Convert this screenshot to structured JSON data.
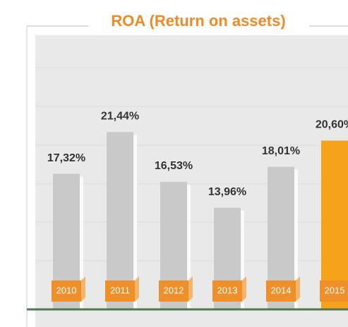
{
  "chart_data": {
    "type": "bar",
    "title": "ROA (Return on assets)",
    "categories": [
      "2010",
      "2011",
      "2012",
      "2013",
      "2014",
      "2015"
    ],
    "values": [
      17.32,
      21.44,
      16.53,
      13.96,
      18.01,
      20.6
    ],
    "value_labels": [
      "17,32%",
      "21,44%",
      "16,53%",
      "13,96%",
      "18,01%",
      "20,60%"
    ],
    "colors": [
      "#c9c9c9",
      "#c9c9c9",
      "#c9c9c9",
      "#c9c9c9",
      "#c9c9c9",
      "#f7a21b"
    ],
    "ylim": [
      4,
      31
    ]
  }
}
